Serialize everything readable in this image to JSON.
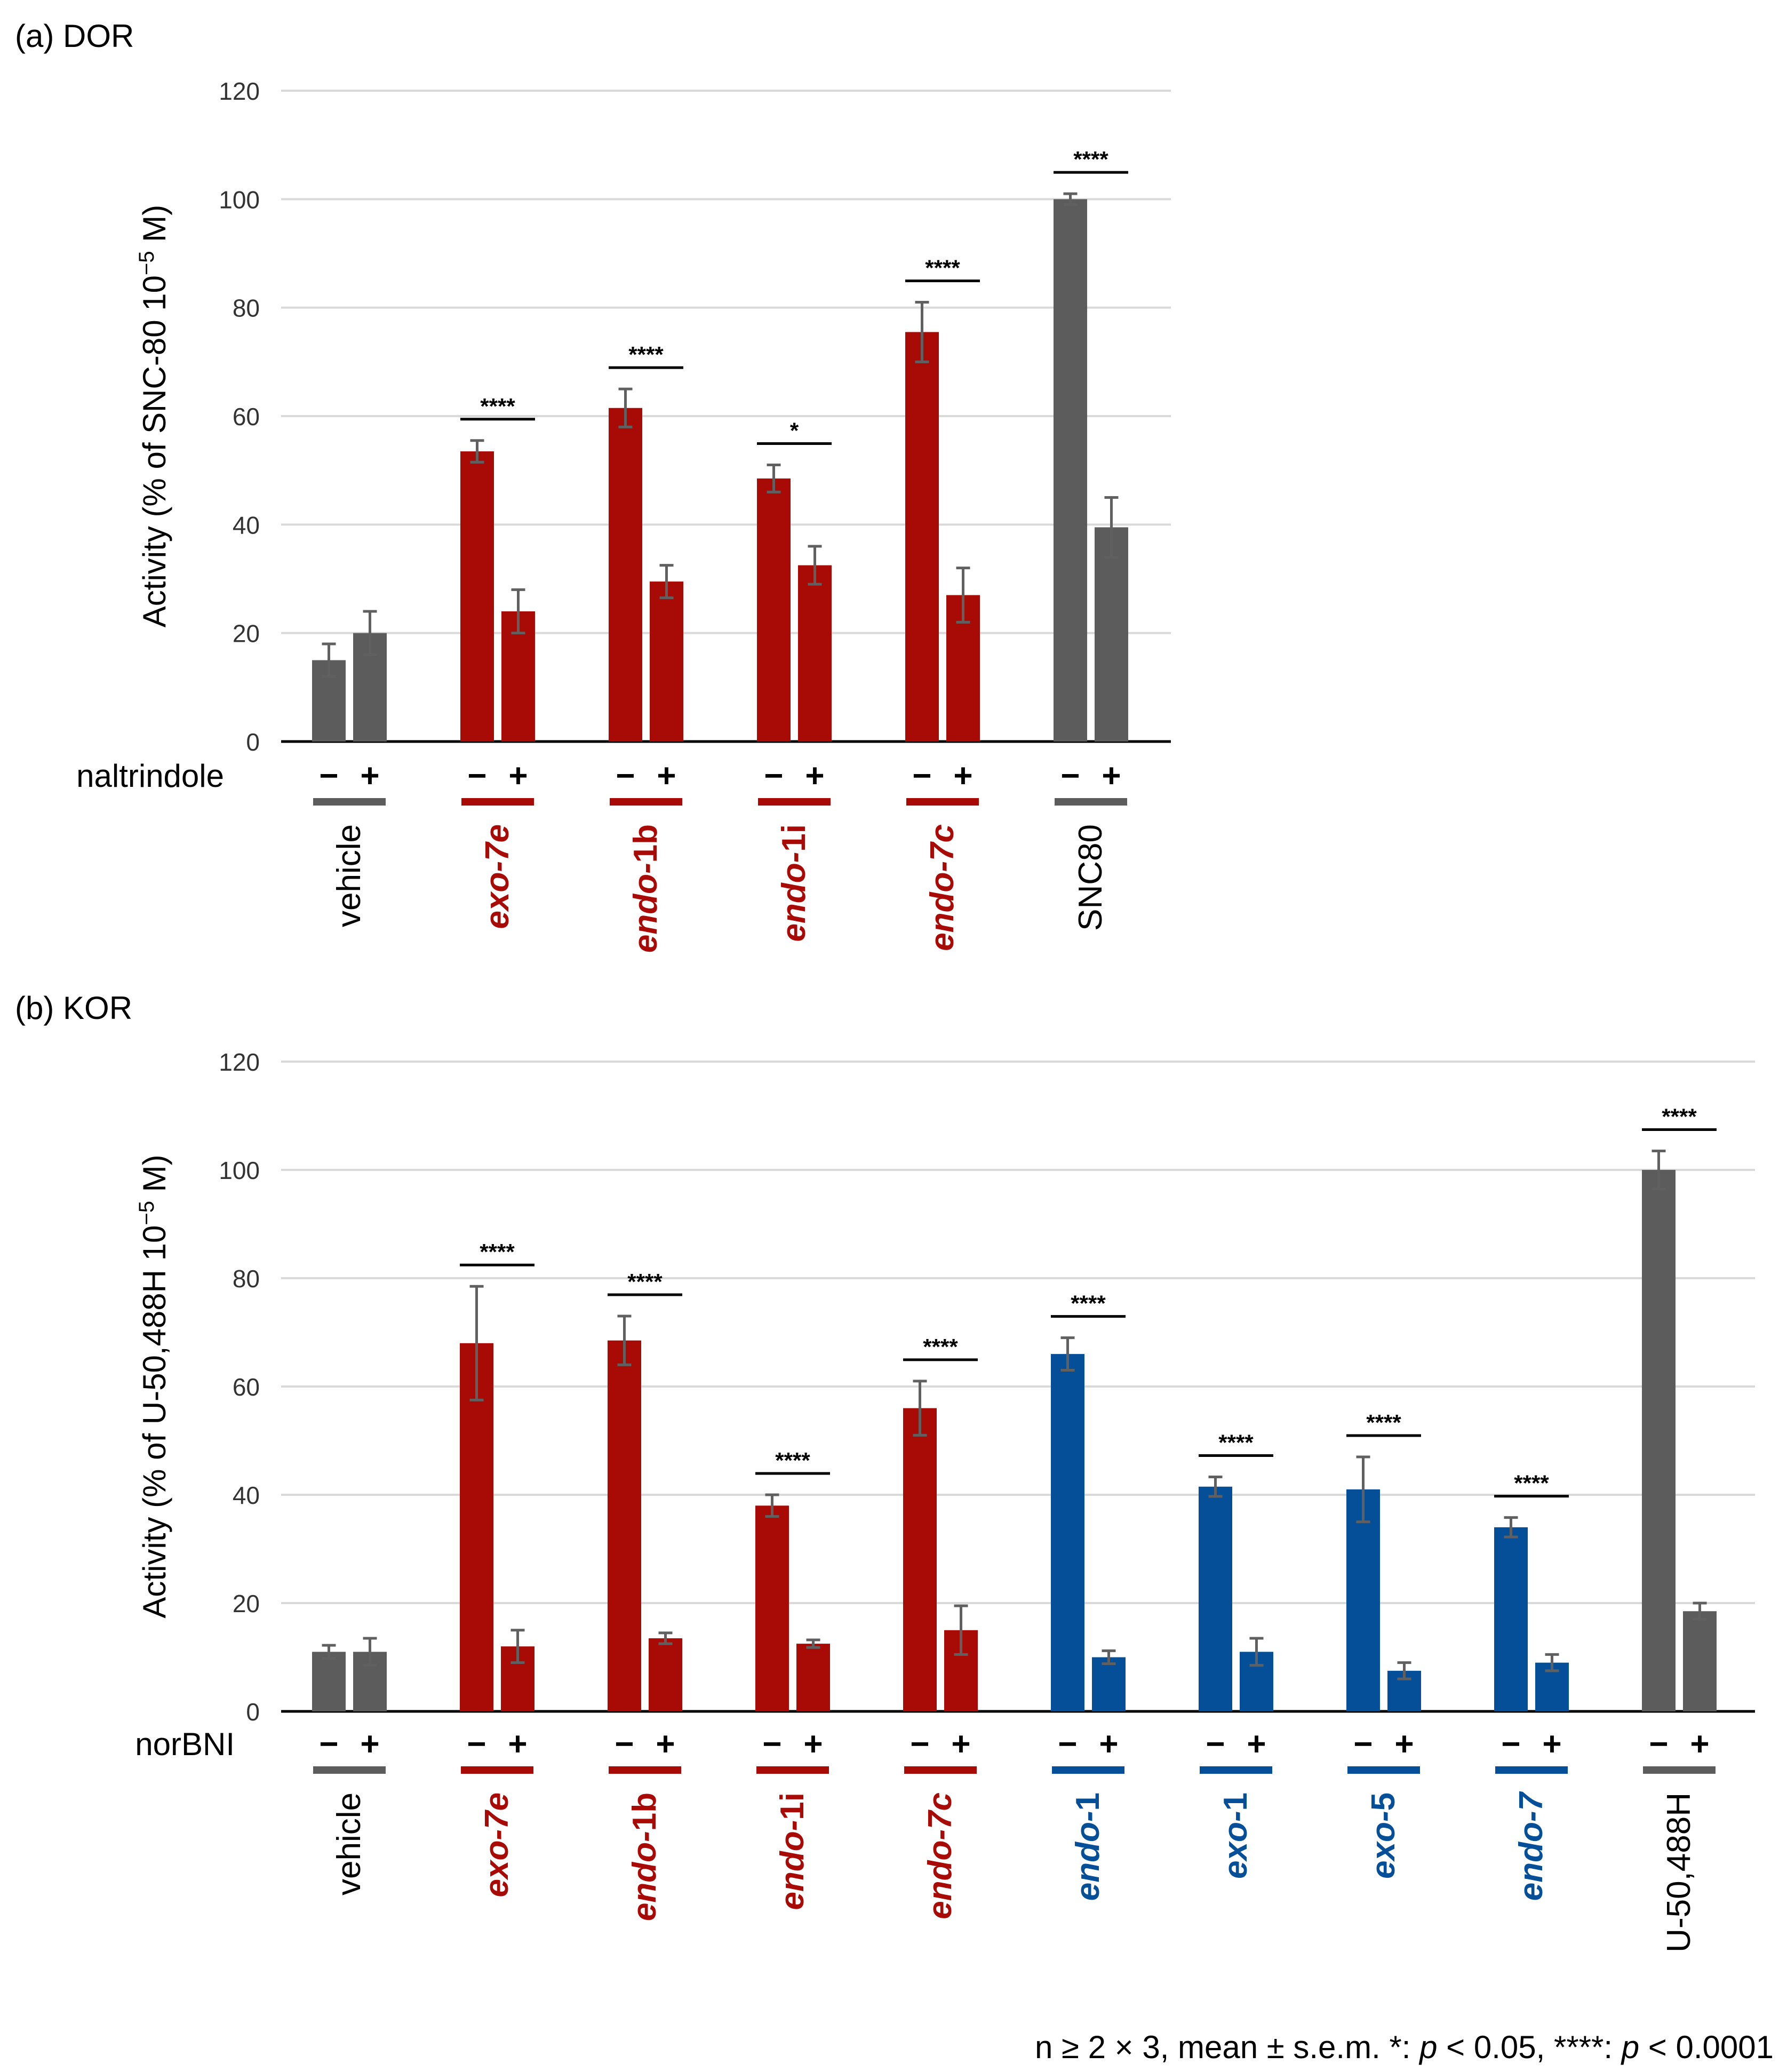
{
  "colors": {
    "red": "#a80a05",
    "blue": "#044f97",
    "gray": "#5c5c5c",
    "grid": "#d9d9d9",
    "axis": "#000000",
    "error": "#606060",
    "text": "#000000",
    "tick_text": "#333333"
  },
  "footnote": {
    "prefix": "n ≥ 2 × 3, mean ± s.e.m. *: ",
    "p1": "p",
    "mid": " < 0.05, ****: ",
    "p2": "p",
    "suffix": " < 0.0001"
  },
  "chart_data": [
    {
      "type": "bar",
      "title": "(a) DOR",
      "ylabel": "Activity (% of SNC-80 10",
      "ylabel_sup": "−5",
      "ylabel_end": " M)",
      "ylim": [
        0,
        120
      ],
      "yticks": [
        "0",
        "20",
        "40",
        "60",
        "80",
        "100",
        "120"
      ],
      "antagonist": "naltrindole",
      "condition_labels": [
        "−",
        "+"
      ],
      "groups": [
        {
          "label": "vehicle",
          "italic_part": "",
          "plain_part": "vehicle",
          "color": "gray",
          "minus": 15,
          "minus_err": 3,
          "plus": 20,
          "plus_err": 4,
          "sig": ""
        },
        {
          "label": "exo-7e",
          "italic_part": "exo-7e",
          "plain_part": "",
          "color": "red",
          "minus": 53.5,
          "minus_err": 2,
          "plus": 24,
          "plus_err": 4,
          "sig": "****"
        },
        {
          "label": "endo-1b",
          "italic_part": "endo-",
          "plain_part": "1b",
          "color": "red",
          "minus": 61.5,
          "minus_err": 3.5,
          "plus": 29.5,
          "plus_err": 3,
          "sig": "****"
        },
        {
          "label": "endo-1i",
          "italic_part": "endo-",
          "plain_part": "1i",
          "color": "red",
          "minus": 48.5,
          "minus_err": 2.5,
          "plus": 32.5,
          "plus_err": 3.5,
          "sig": "*"
        },
        {
          "label": "endo-7c",
          "italic_part": "endo-7c",
          "plain_part": "",
          "color": "red",
          "minus": 75.5,
          "minus_err": 5.5,
          "plus": 27,
          "plus_err": 5,
          "sig": "****"
        },
        {
          "label": "SNC80",
          "italic_part": "",
          "plain_part": "SNC80",
          "color": "gray",
          "minus": 100,
          "minus_err": 1,
          "plus": 39.5,
          "plus_err": 5.5,
          "sig": "****"
        }
      ]
    },
    {
      "type": "bar",
      "title": "(b) KOR",
      "ylabel": "Activity (% of U-50,488H 10",
      "ylabel_sup": "−5",
      "ylabel_end": " M)",
      "ylim": [
        0,
        120
      ],
      "yticks": [
        "0",
        "20",
        "40",
        "60",
        "80",
        "100",
        "120"
      ],
      "antagonist": "norBNI",
      "condition_labels": [
        "−",
        "+"
      ],
      "groups": [
        {
          "label": "vehicle",
          "italic_part": "",
          "plain_part": "vehicle",
          "color": "gray",
          "minus": 11,
          "minus_err": 1.2,
          "plus": 11,
          "plus_err": 2.5,
          "sig": ""
        },
        {
          "label": "exo-7e",
          "italic_part": "exo-7e",
          "plain_part": "",
          "color": "red",
          "minus": 68,
          "minus_err": 10.5,
          "plus": 12,
          "plus_err": 3,
          "sig": "****"
        },
        {
          "label": "endo-1b",
          "italic_part": "endo-",
          "plain_part": "1b",
          "color": "red",
          "minus": 68.5,
          "minus_err": 4.5,
          "plus": 13.5,
          "plus_err": 1,
          "sig": "****"
        },
        {
          "label": "endo-1i",
          "italic_part": "endo-",
          "plain_part": "1i",
          "color": "red",
          "minus": 38,
          "minus_err": 2,
          "plus": 12.5,
          "plus_err": 0.7,
          "sig": "****"
        },
        {
          "label": "endo-7c",
          "italic_part": "endo-7c",
          "plain_part": "",
          "color": "red",
          "minus": 56,
          "minus_err": 5,
          "plus": 15,
          "plus_err": 4.5,
          "sig": "****"
        },
        {
          "label": "endo-1",
          "italic_part": "endo-",
          "plain_part": "1",
          "color": "blue",
          "minus": 66,
          "minus_err": 3,
          "plus": 10,
          "plus_err": 1.2,
          "sig": "****"
        },
        {
          "label": "exo-1",
          "italic_part": "exo-",
          "plain_part": "1",
          "color": "blue",
          "minus": 41.5,
          "minus_err": 1.8,
          "plus": 11,
          "plus_err": 2.5,
          "sig": "****"
        },
        {
          "label": "exo-5",
          "italic_part": "exo-",
          "plain_part": "5",
          "color": "blue",
          "minus": 41,
          "minus_err": 6,
          "plus": 7.5,
          "plus_err": 1.5,
          "sig": "****"
        },
        {
          "label": "endo-7",
          "italic_part": "endo-7",
          "plain_part": "",
          "color": "blue",
          "minus": 34,
          "minus_err": 1.8,
          "plus": 9,
          "plus_err": 1.5,
          "sig": "****"
        },
        {
          "label": "U-50,488H",
          "italic_part": "",
          "plain_part": "U-50,488H",
          "color": "gray",
          "minus": 100,
          "minus_err": 3.5,
          "plus": 18.5,
          "plus_err": 1.5,
          "sig": "****"
        }
      ]
    }
  ]
}
